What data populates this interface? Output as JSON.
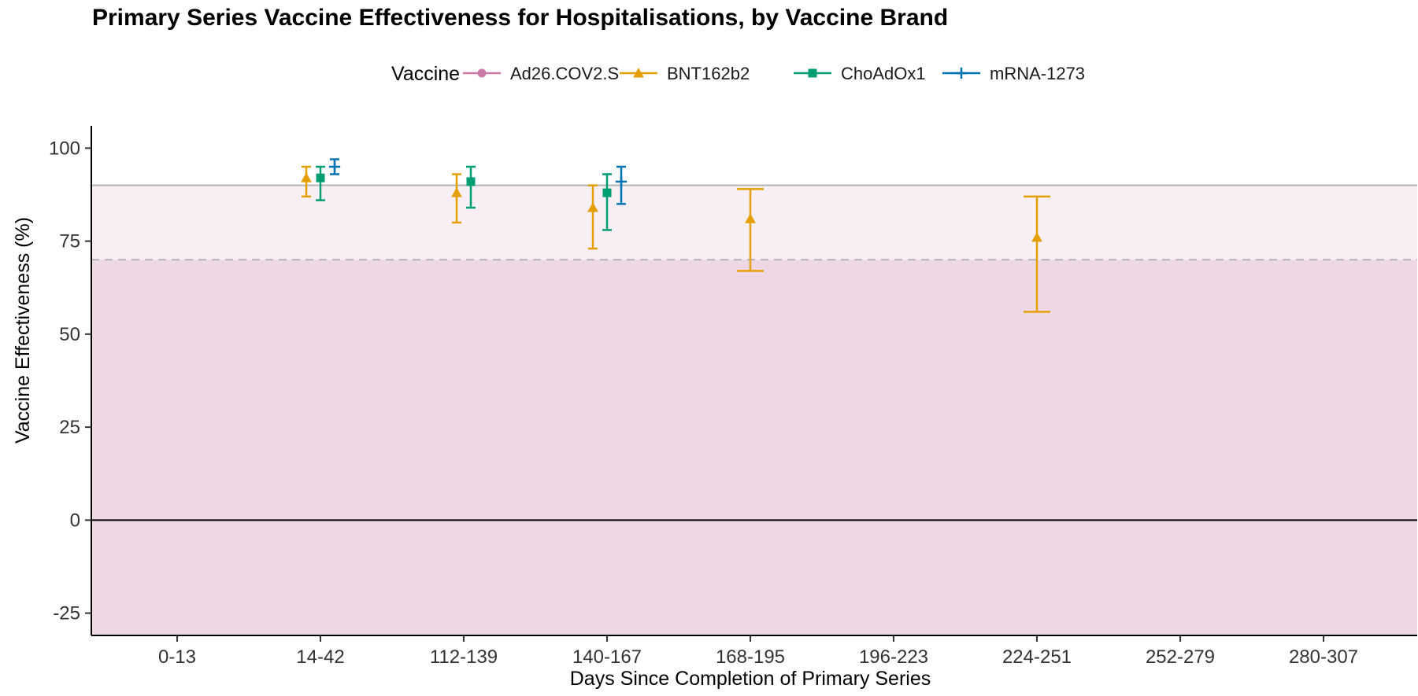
{
  "chart_data": {
    "type": "errorbar",
    "title": "Primary Series Vaccine Effectiveness for Hospitalisations, by Vaccine Brand",
    "xlabel": "Days Since Completion of Primary Series",
    "ylabel": "Vaccine Effectiveness (%)",
    "ylim": [
      -31,
      106
    ],
    "yticks": [
      -25,
      0,
      25,
      50,
      75,
      100
    ],
    "categories": [
      "0-13",
      "14-42",
      "112-139",
      "140-167",
      "168-195",
      "196-223",
      "224-251",
      "252-279",
      "280-307"
    ],
    "reference_lines": {
      "solid_gray": 90,
      "dashed_gray": 70,
      "zero_line": 0
    },
    "shaded_regions": [
      {
        "from": -31,
        "to": 70,
        "color": "#eed8e5"
      },
      {
        "from": 70,
        "to": 90,
        "color": "#f8eff5"
      }
    ],
    "grid": false,
    "legend": {
      "title": "Vaccine",
      "position": "top"
    },
    "series": [
      {
        "name": "Ad26.COV2.S",
        "color": "#cc79a7",
        "marker": "circle",
        "points": []
      },
      {
        "name": "BNT162b2",
        "color": "#e69f00",
        "marker": "triangle",
        "points": [
          {
            "category": "14-42",
            "y": 92,
            "lower": 87,
            "upper": 95
          },
          {
            "category": "112-139",
            "y": 88,
            "lower": 80,
            "upper": 93
          },
          {
            "category": "140-167",
            "y": 84,
            "lower": 73,
            "upper": 90
          },
          {
            "category": "168-195",
            "y": 81,
            "lower": 67,
            "upper": 89
          },
          {
            "category": "224-251",
            "y": 76,
            "lower": 56,
            "upper": 87
          }
        ]
      },
      {
        "name": "ChoAdOx1",
        "color": "#009e73",
        "marker": "square",
        "points": [
          {
            "category": "14-42",
            "y": 92,
            "lower": 86,
            "upper": 95
          },
          {
            "category": "112-139",
            "y": 91,
            "lower": 84,
            "upper": 95
          },
          {
            "category": "140-167",
            "y": 88,
            "lower": 78,
            "upper": 93
          }
        ]
      },
      {
        "name": "mRNA-1273",
        "color": "#0072b2",
        "marker": "plus",
        "points": [
          {
            "category": "14-42",
            "y": 95,
            "lower": 93,
            "upper": 97
          },
          {
            "category": "140-167",
            "y": 91,
            "lower": 85,
            "upper": 95
          }
        ]
      }
    ]
  }
}
